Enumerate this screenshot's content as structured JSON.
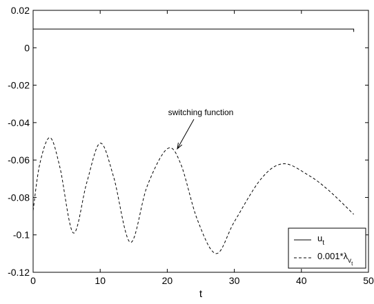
{
  "chart_data": {
    "type": "line",
    "xlabel": "t",
    "ylabel": "",
    "title": "",
    "xlim": [
      0,
      50
    ],
    "ylim": [
      -0.12,
      0.02
    ],
    "xticks": [
      "0",
      "10",
      "20",
      "30",
      "40",
      "50"
    ],
    "yticks": [
      "0.02",
      "0",
      "-0.02",
      "-0.04",
      "-0.06",
      "-0.08",
      "-0.1",
      "-0.12"
    ],
    "grid": false,
    "legend_position": "bottom-right",
    "series": [
      {
        "name": "u_t",
        "legend_main": "u",
        "legend_sub": "t",
        "style": "solid",
        "color": "#000000",
        "x": [
          0,
          47.8
        ],
        "y": [
          0.01,
          0.01
        ],
        "end_drop_to": 0.0085
      },
      {
        "name": "0.001*λ_v_t",
        "legend_main": "0.001*λ",
        "legend_sub": "v",
        "legend_subsub": "t",
        "style": "dashed",
        "color": "#000000",
        "x": [
          0,
          1,
          2.5,
          4,
          6,
          8,
          10,
          12,
          14.5,
          17,
          20,
          22,
          24.5,
          27.3,
          30,
          34,
          37.3,
          41,
          44,
          47.8
        ],
        "y": [
          -0.087,
          -0.062,
          -0.048,
          -0.064,
          -0.099,
          -0.072,
          -0.051,
          -0.069,
          -0.104,
          -0.074,
          -0.054,
          -0.062,
          -0.092,
          -0.11,
          -0.093,
          -0.07,
          -0.062,
          -0.068,
          -0.076,
          -0.089
        ]
      }
    ],
    "annotations": [
      {
        "text": "switching function",
        "x": 25,
        "y": -0.036,
        "arrow_to": [
          21.5,
          -0.054
        ]
      }
    ]
  }
}
